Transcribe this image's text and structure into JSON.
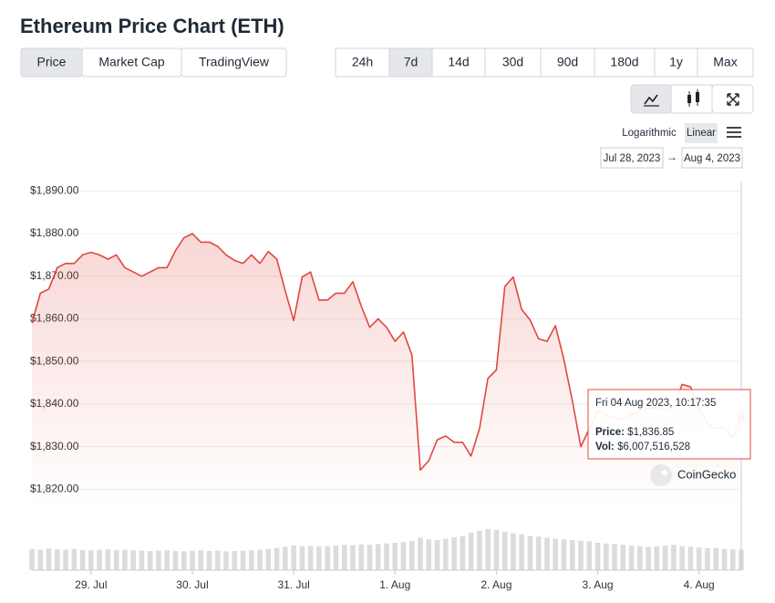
{
  "header": {
    "title": "Ethereum Price Chart (ETH)"
  },
  "tabs": {
    "items": [
      "Price",
      "Market Cap",
      "TradingView"
    ],
    "active": 0
  },
  "ranges": {
    "items": [
      "24h",
      "7d",
      "14d",
      "30d",
      "90d",
      "180d",
      "1y",
      "Max"
    ],
    "active": 1
  },
  "scale": {
    "options": [
      "Logarithmic",
      "Linear"
    ],
    "active": 1
  },
  "date_range": {
    "from": "Jul 28, 2023",
    "to": "Aug 4, 2023"
  },
  "watermark": "CoinGecko",
  "tooltip": {
    "title": "Fri 04 Aug 2023, 10:17:35",
    "price_key": "Price:",
    "price_text": "$1,836.85",
    "vol_key": "Vol:",
    "vol_text": "$6,007,516,528"
  },
  "chart_data": {
    "type": "line",
    "categories": [
      null,
      null,
      null,
      null,
      null,
      null,
      null,
      "29. Jul",
      null,
      null,
      null,
      null,
      null,
      null,
      null,
      null,
      null,
      null,
      null,
      "30. Jul",
      null,
      null,
      null,
      null,
      null,
      null,
      null,
      null,
      null,
      null,
      null,
      "31. Jul",
      null,
      null,
      null,
      null,
      null,
      null,
      null,
      null,
      null,
      null,
      null,
      "1. Aug",
      null,
      null,
      null,
      null,
      null,
      null,
      null,
      null,
      null,
      null,
      null,
      "2. Aug",
      null,
      null,
      null,
      null,
      null,
      null,
      null,
      null,
      null,
      null,
      null,
      "3. Aug",
      null,
      null,
      null,
      null,
      null,
      null,
      null,
      null,
      null,
      null,
      null,
      "4. Aug",
      null,
      null,
      null,
      null,
      null
    ],
    "values": [
      1859,
      1866,
      1867,
      1872,
      1873,
      1873,
      1875,
      1875.6,
      1875,
      1874,
      1875,
      1872,
      1871,
      1870,
      1871,
      1872,
      1872,
      1876,
      1879,
      1880,
      1878,
      1878,
      1877,
      1875,
      1873.7,
      1873,
      1875,
      1873,
      1875.8,
      1874,
      1866.5,
      1859.6,
      1869.8,
      1871,
      1864.4,
      1864.4,
      1866,
      1866,
      1868.7,
      1863,
      1858,
      1860,
      1858,
      1854.7,
      1856.9,
      1851.5,
      1824.5,
      1826.7,
      1831.6,
      1832.5,
      1831,
      1831,
      1827.8,
      1834.2,
      1846,
      1848,
      1867.6,
      1869.8,
      1862.2,
      1859.7,
      1855.3,
      1854.7,
      1858.4,
      1850.4,
      1840.7,
      1830,
      1834.2,
      1838.5,
      1837.5,
      1836.8,
      1836.4,
      1837.5,
      1838.5,
      1839,
      1839.2,
      1838.5,
      1839.6,
      1844.6,
      1844,
      1839,
      1835.3,
      1834.2,
      1834.6,
      1832,
      1836.85
    ],
    "color": "#e0483e",
    "ylim": [
      1816,
      1892
    ],
    "yticks": [
      {
        "value": 1820,
        "label": "$1,820.00"
      },
      {
        "value": 1830,
        "label": "$1,830.00"
      },
      {
        "value": 1840,
        "label": "$1,840.00"
      },
      {
        "value": 1850,
        "label": "$1,850.00"
      },
      {
        "value": 1860,
        "label": "$1,860.00"
      },
      {
        "value": 1870,
        "label": "$1,870.00"
      },
      {
        "value": 1880,
        "label": "$1,880.00"
      },
      {
        "value": 1890,
        "label": "$1,890.00"
      }
    ],
    "grid": true,
    "volumes": [
      6200000000,
      6000000000,
      6300000000,
      6100000000,
      6000000000,
      6200000000,
      5900000000,
      5800000000,
      6000000000,
      6100000000,
      5900000000,
      6000000000,
      5800000000,
      5700000000,
      5600000000,
      5700000000,
      5800000000,
      5600000000,
      5500000000,
      5700000000,
      5800000000,
      5600000000,
      5700000000,
      5500000000,
      5600000000,
      5700000000,
      5800000000,
      6000000000,
      6200000000,
      6500000000,
      6800000000,
      7200000000,
      7000000000,
      7100000000,
      6900000000,
      7000000000,
      7200000000,
      7400000000,
      7300000000,
      7500000000,
      7400000000,
      7600000000,
      7800000000,
      8000000000,
      8200000000,
      8500000000,
      9500000000,
      9000000000,
      8800000000,
      9200000000,
      9600000000,
      10000000000,
      11000000000,
      11500000000,
      12000000000,
      11800000000,
      11200000000,
      10800000000,
      10500000000,
      10000000000,
      9800000000,
      9500000000,
      9200000000,
      9000000000,
      8800000000,
      8600000000,
      8400000000,
      8000000000,
      7800000000,
      7600000000,
      7400000000,
      7200000000,
      7000000000,
      6800000000,
      7000000000,
      7200000000,
      7400000000,
      7000000000,
      6800000000,
      6600000000,
      6400000000,
      6500000000,
      6200000000,
      6100000000,
      6007516528
    ],
    "volume_color": "#dcdcdc",
    "volume_ylim": [
      0,
      20000000000
    ]
  }
}
